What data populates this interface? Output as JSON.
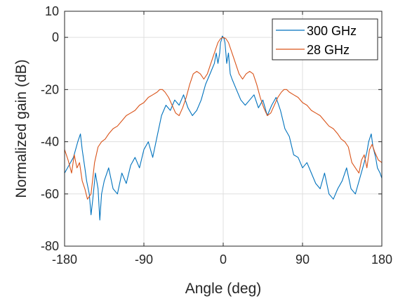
{
  "chart_data": {
    "type": "line",
    "xlabel": "Angle (deg)",
    "ylabel": "Normalized gain (dB)",
    "xlim": [
      -180,
      180
    ],
    "ylim": [
      -80,
      10
    ],
    "xticks": [
      -180,
      -90,
      0,
      90,
      180
    ],
    "xtick_labels": [
      "-180",
      "-90",
      "0",
      "90",
      "180"
    ],
    "yticks": [
      -80,
      -60,
      -40,
      -20,
      0,
      10
    ],
    "ytick_labels": [
      "-80",
      "-60",
      "-40",
      "-20",
      "0",
      "10"
    ],
    "grid": true,
    "legend_position": "top-right",
    "series": [
      {
        "name": "300 GHz",
        "color": "#0072BD",
        "x": [
          -180,
          -175,
          -170,
          -165,
          -162,
          -160,
          -157,
          -155,
          -152,
          -150,
          -148,
          -145,
          -142,
          -140,
          -138,
          -135,
          -130,
          -125,
          -120,
          -115,
          -110,
          -105,
          -100,
          -95,
          -90,
          -85,
          -80,
          -75,
          -70,
          -65,
          -60,
          -55,
          -50,
          -45,
          -40,
          -35,
          -30,
          -25,
          -20,
          -15,
          -10,
          -8,
          -6,
          -4,
          -3,
          -2,
          -1,
          0,
          1,
          2,
          3,
          4,
          6,
          8,
          10,
          15,
          20,
          25,
          30,
          35,
          40,
          45,
          50,
          55,
          60,
          65,
          70,
          75,
          80,
          85,
          90,
          95,
          100,
          105,
          110,
          115,
          120,
          125,
          130,
          135,
          140,
          145,
          150,
          155,
          160,
          163,
          165,
          168,
          170,
          173,
          175,
          178,
          180
        ],
        "y": [
          -52,
          -49,
          -46,
          -40,
          -37,
          -43,
          -50,
          -55,
          -60,
          -68,
          -62,
          -52,
          -58,
          -70,
          -60,
          -55,
          -50,
          -58,
          -60,
          -52,
          -56,
          -49,
          -46,
          -50,
          -43,
          -40,
          -46,
          -38,
          -30,
          -26,
          -28,
          -24,
          -26,
          -22,
          -27,
          -30,
          -28,
          -24,
          -18,
          -14,
          -10,
          -6,
          -10,
          -6,
          -2,
          -1,
          0.5,
          0,
          -0.5,
          -2,
          -6,
          -10,
          -6,
          -14,
          -16,
          -20,
          -24,
          -26,
          -24,
          -22,
          -27,
          -24,
          -30,
          -26,
          -23,
          -28,
          -35,
          -38,
          -45,
          -46,
          -50,
          -48,
          -52,
          -56,
          -58,
          -52,
          -60,
          -62,
          -58,
          -55,
          -50,
          -58,
          -60,
          -54,
          -48,
          -44,
          -40,
          -37,
          -42,
          -46,
          -50,
          -52,
          -54
        ]
      },
      {
        "name": "28 GHz",
        "color": "#D95319",
        "x": [
          -180,
          -176,
          -172,
          -169,
          -166,
          -163,
          -160,
          -157,
          -154,
          -150,
          -146,
          -142,
          -138,
          -134,
          -130,
          -125,
          -120,
          -115,
          -110,
          -105,
          -100,
          -95,
          -90,
          -85,
          -80,
          -75,
          -72,
          -69,
          -66,
          -62,
          -58,
          -54,
          -50,
          -46,
          -42,
          -38,
          -34,
          -30,
          -26,
          -22,
          -18,
          -14,
          -10,
          -6,
          -3,
          0,
          3,
          6,
          10,
          14,
          18,
          22,
          26,
          30,
          34,
          38,
          42,
          46,
          50,
          54,
          58,
          62,
          66,
          69,
          72,
          75,
          80,
          85,
          90,
          95,
          100,
          105,
          110,
          115,
          120,
          125,
          130,
          134,
          138,
          142,
          146,
          150,
          154,
          157,
          160,
          163,
          166,
          169,
          172,
          176,
          180
        ],
        "y": [
          -43,
          -47,
          -52,
          -45,
          -50,
          -48,
          -55,
          -58,
          -62,
          -60,
          -48,
          -42,
          -40,
          -39,
          -37,
          -35,
          -34,
          -32,
          -30,
          -29,
          -28,
          -26,
          -25,
          -23,
          -22,
          -21,
          -20,
          -20,
          -21,
          -23,
          -26,
          -29,
          -30,
          -27,
          -23,
          -18,
          -14,
          -13,
          -14,
          -16,
          -14,
          -10,
          -6,
          -2,
          -0.5,
          0,
          -0.5,
          -2,
          -6,
          -10,
          -14,
          -16,
          -14,
          -13,
          -14,
          -18,
          -23,
          -27,
          -30,
          -29,
          -26,
          -23,
          -21,
          -20,
          -20,
          -21,
          -22,
          -23,
          -25,
          -26,
          -28,
          -29,
          -30,
          -32,
          -34,
          -35,
          -37,
          -39,
          -40,
          -42,
          -48,
          -50,
          -52,
          -47,
          -45,
          -50,
          -43,
          -41,
          -44,
          -47,
          -48
        ]
      }
    ]
  }
}
